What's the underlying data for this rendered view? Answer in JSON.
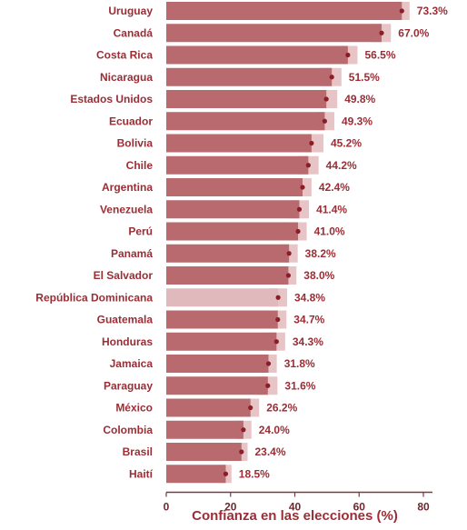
{
  "chart_data": {
    "type": "bar",
    "orientation": "horizontal",
    "xlabel": "Confianza en las elecciones (%)",
    "xlim": [
      0,
      80
    ],
    "xticks": [
      0,
      20,
      40,
      60,
      80
    ],
    "grid": false,
    "categories": [
      "Uruguay",
      "Canadá",
      "Costa Rica",
      "Nicaragua",
      "Estados Unidos",
      "Ecuador",
      "Bolivia",
      "Chile",
      "Argentina",
      "Venezuela",
      "Perú",
      "Panamá",
      "El Salvador",
      "República Dominicana",
      "Guatemala",
      "Honduras",
      "Jamaica",
      "Paraguay",
      "México",
      "Colombia",
      "Brasil",
      "Haití"
    ],
    "values": [
      73.3,
      67.0,
      56.5,
      51.5,
      49.8,
      49.3,
      45.2,
      44.2,
      42.4,
      41.4,
      41.0,
      38.2,
      38.0,
      34.8,
      34.7,
      34.3,
      31.8,
      31.6,
      26.2,
      24.0,
      23.4,
      18.5
    ],
    "value_labels": [
      "73.3%",
      "67.0%",
      "56.5%",
      "51.5%",
      "49.8%",
      "49.3%",
      "45.2%",
      "44.2%",
      "42.4%",
      "41.4%",
      "41.0%",
      "38.2%",
      "38.0%",
      "34.8%",
      "34.7%",
      "34.3%",
      "31.8%",
      "31.6%",
      "26.2%",
      "24.0%",
      "23.4%",
      "18.5%"
    ],
    "ci_lower": [
      70.9,
      64.0,
      53.5,
      48.0,
      46.3,
      46.3,
      41.5,
      41.0,
      39.5,
      38.3,
      38.3,
      35.5,
      35.5,
      32.0,
      32.0,
      31.6,
      29.2,
      28.5,
      23.5,
      21.5,
      21.5,
      16.8
    ],
    "ci_upper": [
      75.7,
      69.9,
      59.5,
      54.5,
      53.2,
      52.3,
      48.9,
      47.4,
      45.2,
      44.4,
      43.7,
      40.9,
      40.5,
      37.6,
      37.4,
      37.0,
      34.4,
      34.6,
      28.9,
      26.5,
      25.3,
      20.3
    ],
    "highlighted_category": "República Dominicana",
    "colors": {
      "bar": "#b86a6e",
      "bar_highlight": "#dfb9bb",
      "ci_band": "#e7c5c7",
      "marker": "#8b1d27",
      "label_text": "#9b2d35",
      "axis": "#7a3a40"
    }
  }
}
